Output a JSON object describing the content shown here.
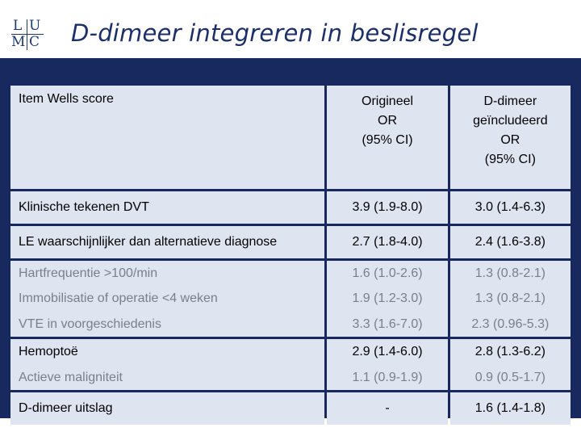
{
  "logo": {
    "l": "L",
    "u": "U",
    "m": "M",
    "c": "C"
  },
  "title": "D-dimeer integreren in beslisregel",
  "table": {
    "headers": {
      "item": "Item Wells score",
      "orig": [
        "Origineel",
        "OR",
        "(95% CI)"
      ],
      "dd": [
        "D-dimeer",
        "geïncludeerd",
        "OR",
        "(95% CI)"
      ]
    },
    "rows": [
      {
        "item": "Klinische tekenen DVT",
        "orig": "3.9 (1.9-8.0)",
        "dd": "3.0 (1.4-6.3)"
      },
      {
        "item": "LE waarschijnlijker dan alternatieve diagnose",
        "orig": "2.7 (1.8-4.0)",
        "dd": "2.4 (1.6-3.8)"
      },
      {
        "item": "Hartfrequentie >100/min",
        "orig": "1.6 (1.0-2.6)",
        "dd": "1.3 (0.8-2.1)"
      },
      {
        "item": "Immobilisatie of operatie <4 weken",
        "orig": "1.9 (1.2-3.0)",
        "dd": "1.3 (0.8-2.1)"
      },
      {
        "item": "VTE in voorgeschiedenis",
        "orig": "3.3 (1.6-7.0)",
        "dd": "2.3 (0.96-5.3)"
      },
      {
        "item": "Hemoptoë",
        "orig": "2.9 (1.4-6.0)",
        "dd": "2.8 (1.3-6.2)"
      },
      {
        "item": "Actieve maligniteit",
        "orig": "1.1 (0.9-1.9)",
        "dd": "0.9 (0.5-1.7)"
      },
      {
        "item": "D-dimeer uitslag",
        "orig": "-",
        "dd": "1.6 (1.4-1.8)"
      }
    ]
  },
  "colors": {
    "navy": "#17295e",
    "cell": "#dfe4f1",
    "muted": "#7a7f8c"
  }
}
